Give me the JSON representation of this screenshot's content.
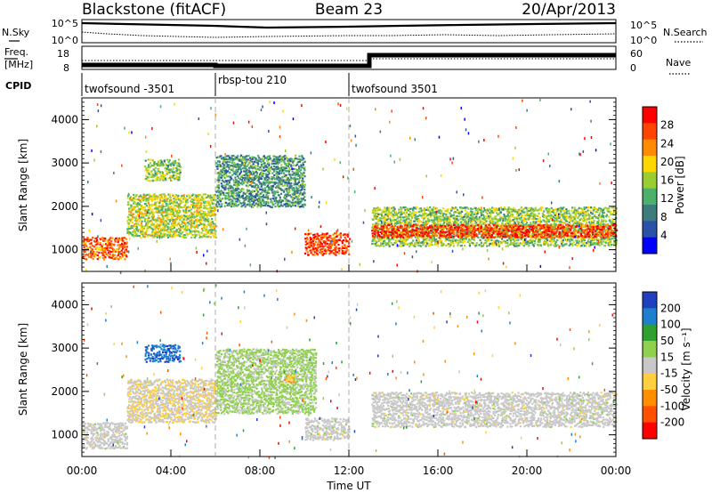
{
  "header": {
    "radar_title": "Blackstone (fitACF)",
    "beam": "Beam 23",
    "date": "20/Apr/2013"
  },
  "panels": {
    "nsky_label": "N.Sky",
    "nsearch_label": "N.Search",
    "freq_label_1": "Freq.",
    "freq_label_2": "[MHz]",
    "nave_label": "Nave",
    "cpid_label": "CPID",
    "nsky_ticks": [
      "10^5",
      "10^0"
    ],
    "nsearch_ticks": [
      "10^5",
      "10^0"
    ],
    "freq_ticks": [
      "18",
      "8"
    ],
    "nave_ticks": [
      "60",
      "0"
    ]
  },
  "cpid_segments": [
    {
      "label": "twofsound -3501",
      "start_h": 0,
      "end_h": 6
    },
    {
      "label": "rbsp-tou 210",
      "start_h": 6,
      "end_h": 12
    },
    {
      "label": "twofsound 3501",
      "start_h": 12,
      "end_h": 24
    }
  ],
  "colors": {
    "power_scale": [
      "#0000ff",
      "#2a52a8",
      "#3d7c7c",
      "#4caf6a",
      "#9acd32",
      "#ffd700",
      "#ff8c00",
      "#ff4500",
      "#ff0000"
    ],
    "velocity_scale": [
      "#1f3fbf",
      "#1f7fcf",
      "#2fa02f",
      "#8fd04f",
      "#c8c8c8",
      "#ffcf3f",
      "#ff8f00",
      "#ff4f00",
      "#ff0000"
    ]
  },
  "chart_data": [
    {
      "type": "heatmap",
      "name": "Power",
      "xlabel": "Time UT",
      "ylabel": "Slant Range [km]",
      "xlim": [
        0,
        24
      ],
      "ylim": [
        500,
        4500
      ],
      "x_ticks": [
        "00:00",
        "04:00",
        "08:00",
        "12:00",
        "16:00",
        "20:00",
        "00:00"
      ],
      "y_ticks": [
        1000,
        2000,
        3000,
        4000
      ],
      "colorbar_label": "Power [dB]",
      "colorbar_ticks": [
        "4",
        "8",
        "12",
        "16",
        "20",
        "24",
        "28"
      ],
      "colorbar_range": [
        0,
        30
      ],
      "bands": [
        {
          "x_start": 0.0,
          "x_end": 2.0,
          "y_lo": 800,
          "y_hi": 1300,
          "value": 24
        },
        {
          "x_start": 2.0,
          "x_end": 6.0,
          "y_lo": 1300,
          "y_hi": 2300,
          "value": 16
        },
        {
          "x_start": 2.8,
          "x_end": 4.4,
          "y_lo": 2600,
          "y_hi": 3100,
          "value": 14
        },
        {
          "x_start": 6.0,
          "x_end": 10.0,
          "y_lo": 2000,
          "y_hi": 3200,
          "value": 10
        },
        {
          "x_start": 10.0,
          "x_end": 12.0,
          "y_lo": 900,
          "y_hi": 1400,
          "value": 26
        },
        {
          "x_start": 13.0,
          "x_end": 24.0,
          "y_lo": 1100,
          "y_hi": 2000,
          "value": 14
        },
        {
          "x_start": 13.0,
          "x_end": 24.0,
          "y_lo": 1300,
          "y_hi": 1600,
          "value": 26
        }
      ]
    },
    {
      "type": "heatmap",
      "name": "Velocity",
      "xlabel": "Time UT",
      "ylabel": "Slant Range [km]",
      "xlim": [
        0,
        24
      ],
      "ylim": [
        500,
        4500
      ],
      "x_ticks": [
        "00:00",
        "04:00",
        "08:00",
        "12:00",
        "16:00",
        "20:00",
        "00:00"
      ],
      "y_ticks": [
        1000,
        2000,
        3000,
        4000
      ],
      "colorbar_label": "Velocity [m s⁻¹]",
      "colorbar_ticks": [
        "200",
        "100",
        "50",
        "15",
        "-15",
        "-50",
        "-100",
        "-200"
      ],
      "colorbar_range": [
        -250,
        250
      ],
      "bands": [
        {
          "x_start": 0.0,
          "x_end": 2.0,
          "y_lo": 700,
          "y_hi": 1300,
          "value": 0
        },
        {
          "x_start": 2.0,
          "x_end": 6.0,
          "y_lo": 1300,
          "y_hi": 2300,
          "value": -20
        },
        {
          "x_start": 2.8,
          "x_end": 4.4,
          "y_lo": 2700,
          "y_hi": 3100,
          "value": 180
        },
        {
          "x_start": 6.0,
          "x_end": 10.5,
          "y_lo": 1500,
          "y_hi": 3000,
          "value": 40
        },
        {
          "x_start": 9.0,
          "x_end": 9.5,
          "y_lo": 2200,
          "y_hi": 2400,
          "value": -80
        },
        {
          "x_start": 10.0,
          "x_end": 12.0,
          "y_lo": 900,
          "y_hi": 1400,
          "value": 0
        },
        {
          "x_start": 13.0,
          "x_end": 24.0,
          "y_lo": 1200,
          "y_hi": 2000,
          "value": 0
        }
      ]
    }
  ]
}
